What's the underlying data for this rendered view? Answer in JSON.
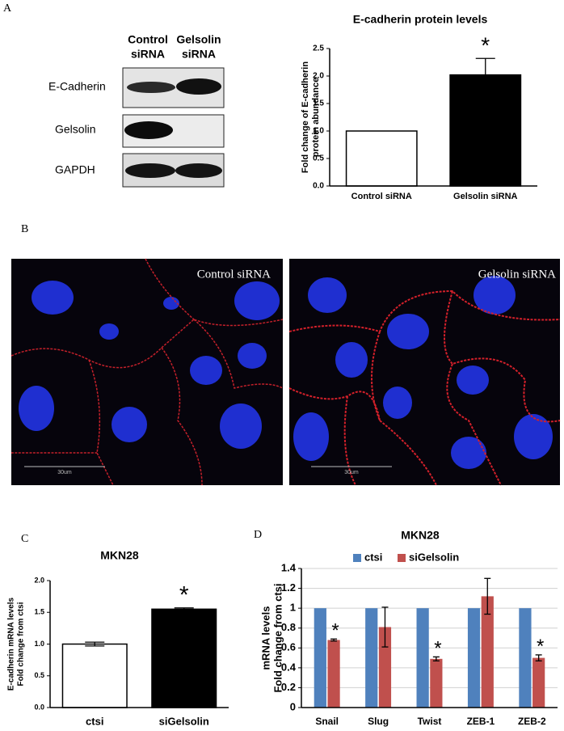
{
  "figure": {
    "panel_labels": [
      "A",
      "B",
      "C",
      "D"
    ],
    "blot": {
      "columns": [
        [
          "Control",
          "siRNA"
        ],
        [
          "Gelsolin",
          "siRNA"
        ]
      ],
      "rows": [
        "E-Cadherin",
        "Gelsolin",
        "GAPDH"
      ]
    },
    "micrographs": {
      "labels": [
        "Control siRNA",
        "Gelsolin siRNA"
      ],
      "scale_bar": "30um"
    }
  },
  "chart_data": [
    {
      "type": "bar",
      "title": "E-cadherin protein levels",
      "y_label": [
        "Fold change of E-cadherin",
        "protein abundance"
      ],
      "categories": [
        "Control siRNA",
        "Gelsolin siRNA"
      ],
      "values": [
        1.0,
        2.02
      ],
      "errors": [
        null,
        0.3
      ],
      "colors": [
        "#ffffff",
        "#000000"
      ],
      "significance": [
        null,
        "*"
      ],
      "ylim": [
        0,
        2.5
      ],
      "yticks": [
        {
          "value": 0,
          "label": "0.0"
        },
        0.5,
        {
          "value": 1,
          "label": "1.0"
        },
        1.5,
        {
          "value": 2,
          "label": "2.0"
        },
        2.5
      ],
      "grid": false
    },
    {
      "type": "bar",
      "title": "MKN28",
      "y_label": [
        "E-cadherin mRNA levels",
        "Fold change from ctsi"
      ],
      "categories": [
        "ctsi",
        "siGelsolin"
      ],
      "values": [
        1.0,
        1.55
      ],
      "errors": [
        0.03,
        0.02
      ],
      "colors": [
        "#ffffff",
        "#000000"
      ],
      "significance": [
        null,
        "*"
      ],
      "ylim": [
        0,
        2.0
      ],
      "yticks": [
        {
          "value": 0,
          "label": "0.0"
        },
        0.5,
        {
          "value": 1,
          "label": "1.0"
        },
        1.5,
        {
          "value": 2,
          "label": "2.0"
        }
      ],
      "grid": false
    },
    {
      "type": "grouped-bar",
      "title": "MKN28",
      "y_label": [
        "mRNA levels",
        "Fold change from ctsi"
      ],
      "categories": [
        "Snail",
        "Slug",
        "Twist",
        "ZEB-1",
        "ZEB-2"
      ],
      "series": [
        {
          "name": "ctsi",
          "color": "#4f81bd",
          "values": [
            1,
            1,
            1,
            1,
            1
          ]
        },
        {
          "name": "siGelsolin",
          "color": "#c0504d",
          "values": [
            0.68,
            0.81,
            0.49,
            1.12,
            0.5
          ],
          "errors": [
            0.01,
            0.2,
            0.02,
            0.18,
            0.03
          ],
          "significance": [
            "*",
            null,
            "*",
            null,
            "*"
          ]
        }
      ],
      "ylim": [
        0,
        1.4
      ],
      "yticks": [
        0,
        0.2,
        0.4,
        0.6,
        0.8,
        1,
        1.2,
        1.4
      ],
      "grid": true,
      "legend": "top"
    }
  ]
}
